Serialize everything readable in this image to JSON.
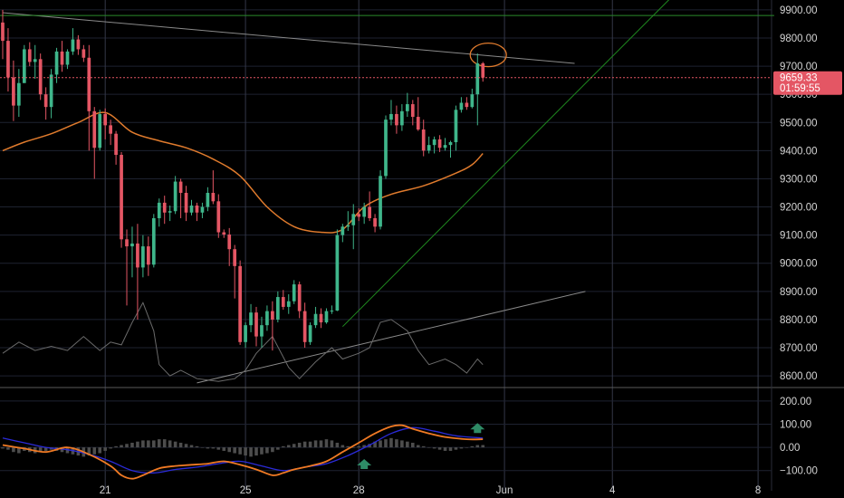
{
  "colors": {
    "background": "#000000",
    "grid": "#1e2230",
    "vgrid": "#343848",
    "up": "#3fb68b",
    "down": "#e45664",
    "ma": "#e07b2d",
    "trendline": "#8a8a8a",
    "channel": "#1f8a1f",
    "hline": "#2a8a2a",
    "macd": "#f07a24",
    "signal": "#2b2bd8",
    "hist": "#4d4d4d",
    "arrow": "#2e8b66",
    "price_tag": "#e45664",
    "circle": "#e07b2d"
  },
  "price_axis": {
    "ticks": [
      "9900.00",
      "9800.00",
      "9700.00",
      "9600.00",
      "9500.00",
      "9400.00",
      "9300.00",
      "9200.00",
      "9100.00",
      "9000.00",
      "8900.00",
      "8800.00",
      "8700.00",
      "8600.00"
    ]
  },
  "price_tag": {
    "price": "9659.33",
    "countdown": "01:59:55"
  },
  "macd_axis": {
    "ticks": [
      "200.00",
      "100.00",
      "0.00",
      "−100.00"
    ]
  },
  "date_axis": {
    "labels": [
      "21",
      "25",
      "28",
      "Jun",
      "4",
      "8"
    ]
  },
  "chart_data": {
    "type": "candlestick",
    "y_range": [
      8565,
      9935
    ],
    "macd_range": [
      -140,
      250
    ],
    "x_index_range": [
      -0.5,
      142.5
    ],
    "last_price": 9659.33,
    "date_ticks": [
      {
        "label": "21",
        "index": 19
      },
      {
        "label": "25",
        "index": 45
      },
      {
        "label": "28",
        "index": 66
      },
      {
        "label": "Jun",
        "index": 93
      },
      {
        "label": "4",
        "index": 113
      },
      {
        "label": "8",
        "index": 140
      }
    ],
    "candles": [
      [
        9855,
        9900,
        9725,
        9790
      ],
      [
        9790,
        9835,
        9610,
        9660
      ],
      [
        9660,
        9720,
        9505,
        9560
      ],
      [
        9560,
        9690,
        9520,
        9640
      ],
      [
        9640,
        9775,
        9640,
        9760
      ],
      [
        9760,
        9785,
        9700,
        9715
      ],
      [
        9715,
        9775,
        9655,
        9725
      ],
      [
        9725,
        9745,
        9580,
        9600
      ],
      [
        9600,
        9625,
        9510,
        9555
      ],
      [
        9555,
        9690,
        9515,
        9670
      ],
      [
        9670,
        9765,
        9640,
        9752
      ],
      [
        9752,
        9790,
        9680,
        9705
      ],
      [
        9705,
        9760,
        9690,
        9752
      ],
      [
        9752,
        9835,
        9740,
        9795
      ],
      [
        9795,
        9810,
        9740,
        9760
      ],
      [
        9760,
        9775,
        9715,
        9730
      ],
      [
        9730,
        9775,
        9400,
        9540
      ],
      [
        9540,
        9555,
        9300,
        9410
      ],
      [
        9410,
        9545,
        9400,
        9530
      ],
      [
        9530,
        9550,
        9440,
        9490
      ],
      [
        9490,
        9510,
        9420,
        9460
      ],
      [
        9460,
        9470,
        9350,
        9385
      ],
      [
        9385,
        9395,
        9055,
        9085
      ],
      [
        9085,
        9120,
        8850,
        9060
      ],
      [
        9060,
        9130,
        8950,
        9070
      ],
      [
        9070,
        9140,
        8800,
        8985
      ],
      [
        8985,
        9100,
        8950,
        9060
      ],
      [
        9060,
        9095,
        8955,
        8995
      ],
      [
        8995,
        9175,
        8985,
        9160
      ],
      [
        9160,
        9230,
        9130,
        9215
      ],
      [
        9215,
        9240,
        9140,
        9180
      ],
      [
        9180,
        9205,
        9150,
        9185
      ],
      [
        9185,
        9310,
        9175,
        9290
      ],
      [
        9290,
        9300,
        9160,
        9250
      ],
      [
        9250,
        9275,
        9150,
        9180
      ],
      [
        9180,
        9225,
        9170,
        9205
      ],
      [
        9205,
        9215,
        9150,
        9180
      ],
      [
        9180,
        9215,
        9160,
        9200
      ],
      [
        9200,
        9270,
        9185,
        9250
      ],
      [
        9250,
        9330,
        9210,
        9220
      ],
      [
        9220,
        9245,
        9090,
        9110
      ],
      [
        9110,
        9120,
        9090,
        9102
      ],
      [
        9102,
        9125,
        8990,
        9050
      ],
      [
        9050,
        9065,
        8875,
        8990
      ],
      [
        8990,
        9010,
        8710,
        8720
      ],
      [
        8720,
        8790,
        8700,
        8780
      ],
      [
        8780,
        8855,
        8755,
        8825
      ],
      [
        8825,
        8845,
        8705,
        8740
      ],
      [
        8740,
        8810,
        8700,
        8780
      ],
      [
        8780,
        8850,
        8760,
        8830
      ],
      [
        8830,
        8865,
        8690,
        8800
      ],
      [
        8800,
        8900,
        8790,
        8880
      ],
      [
        8880,
        8905,
        8835,
        8845
      ],
      [
        8845,
        8890,
        8820,
        8865
      ],
      [
        8865,
        8940,
        8855,
        8925
      ],
      [
        8925,
        8935,
        8805,
        8830
      ],
      [
        8830,
        8860,
        8700,
        8720
      ],
      [
        8720,
        8790,
        8710,
        8780
      ],
      [
        8780,
        8845,
        8770,
        8820
      ],
      [
        8820,
        8840,
        8770,
        8790
      ],
      [
        8790,
        8840,
        8785,
        8830
      ],
      [
        8830,
        8850,
        8820,
        8832
      ],
      [
        8832,
        9120,
        8830,
        9100
      ],
      [
        9100,
        9140,
        9075,
        9130
      ],
      [
        9130,
        9185,
        9115,
        9135
      ],
      [
        9135,
        9210,
        9050,
        9175
      ],
      [
        9175,
        9195,
        9150,
        9165
      ],
      [
        9165,
        9215,
        9140,
        9200
      ],
      [
        9200,
        9255,
        9150,
        9160
      ],
      [
        9160,
        9175,
        9110,
        9130
      ],
      [
        9130,
        9330,
        9120,
        9310
      ],
      [
        9310,
        9525,
        9300,
        9510
      ],
      [
        9510,
        9580,
        9490,
        9530
      ],
      [
        9530,
        9560,
        9460,
        9490
      ],
      [
        9490,
        9565,
        9470,
        9540
      ],
      [
        9540,
        9605,
        9520,
        9565
      ],
      [
        9565,
        9580,
        9490,
        9520
      ],
      [
        9520,
        9590,
        9470,
        9475
      ],
      [
        9475,
        9510,
        9380,
        9400
      ],
      [
        9400,
        9450,
        9390,
        9420
      ],
      [
        9420,
        9450,
        9390,
        9440
      ],
      [
        9440,
        9455,
        9395,
        9410
      ],
      [
        9410,
        9445,
        9400,
        9420
      ],
      [
        9420,
        9435,
        9375,
        9430
      ],
      [
        9430,
        9560,
        9400,
        9545
      ],
      [
        9545,
        9590,
        9535,
        9570
      ],
      [
        9570,
        9590,
        9545,
        9555
      ],
      [
        9555,
        9620,
        9550,
        9600
      ],
      [
        9600,
        9745,
        9490,
        9710
      ],
      [
        9710,
        9715,
        9645,
        9659.33
      ]
    ],
    "ma": {
      "indices": [
        0,
        4,
        9,
        14,
        19,
        24,
        29,
        34,
        39,
        44,
        49,
        54,
        59,
        63,
        67,
        72,
        78,
        84,
        87,
        89
      ],
      "values": [
        9400,
        9430,
        9460,
        9500,
        9535,
        9465,
        9435,
        9410,
        9370,
        9310,
        9200,
        9130,
        9110,
        9120,
        9200,
        9245,
        9275,
        9320,
        9350,
        9390
      ]
    },
    "oscillator": {
      "indices": [
        0,
        3,
        6,
        9,
        12,
        15,
        18,
        20,
        22,
        24,
        26,
        28,
        29,
        31,
        33,
        36,
        40,
        43,
        45,
        47,
        50,
        53,
        55,
        58,
        61,
        63,
        66,
        68,
        70,
        72,
        75,
        77,
        79,
        82,
        84,
        86,
        88,
        89
      ],
      "values": [
        8680,
        8720,
        8690,
        8705,
        8690,
        8740,
        8690,
        8720,
        8710,
        8790,
        8860,
        8760,
        8640,
        8600,
        8620,
        8590,
        8580,
        8590,
        8620,
        8680,
        8740,
        8630,
        8590,
        8650,
        8700,
        8660,
        8680,
        8700,
        8790,
        8800,
        8760,
        8690,
        8640,
        8660,
        8640,
        8610,
        8660,
        8640
      ]
    },
    "trendlines": [
      {
        "name": "upper",
        "from": [
          0,
          9890
        ],
        "to": [
          106,
          9710
        ],
        "color": "trendline"
      },
      {
        "name": "lower",
        "from": [
          36,
          8575
        ],
        "to": [
          108,
          8900
        ],
        "color": "trendline"
      },
      {
        "name": "channel",
        "from": [
          63,
          8775
        ],
        "to": [
          125,
          9965
        ],
        "color": "channel"
      },
      {
        "name": "horizontal",
        "from": [
          -1,
          9880
        ],
        "to": [
          143,
          9880
        ],
        "color": "hline"
      }
    ],
    "ellipse_center": [
      90,
      9740
    ],
    "macd": {
      "indices": [
        0,
        4,
        8,
        12,
        16,
        20,
        22,
        24,
        26,
        29,
        32,
        35,
        38,
        41,
        44,
        47,
        50,
        52,
        54,
        57,
        60,
        63,
        66,
        69,
        72,
        74,
        76,
        79,
        82,
        86,
        89
      ],
      "values": [
        10,
        -5,
        -20,
        0,
        -30,
        -80,
        -120,
        -135,
        -120,
        -90,
        -80,
        -75,
        -70,
        -60,
        -75,
        -95,
        -120,
        -110,
        -95,
        -80,
        -60,
        -20,
        20,
        60,
        90,
        95,
        80,
        60,
        45,
        35,
        35
      ]
    },
    "signal": {
      "indices": [
        0,
        4,
        8,
        12,
        16,
        20,
        24,
        28,
        32,
        36,
        40,
        44,
        48,
        52,
        56,
        60,
        64,
        68,
        72,
        76,
        80,
        84,
        89
      ],
      "values": [
        40,
        20,
        0,
        -10,
        -30,
        -60,
        -100,
        -110,
        -95,
        -85,
        -70,
        -60,
        -80,
        -100,
        -85,
        -70,
        -35,
        10,
        60,
        85,
        70,
        50,
        40
      ]
    },
    "histogram": [
      -5,
      -10,
      -20,
      -25,
      -15,
      -20,
      -25,
      -20,
      -15,
      -10,
      -15,
      -20,
      -25,
      -30,
      -35,
      -40,
      -35,
      -30,
      -25,
      -15,
      -5,
      5,
      10,
      15,
      20,
      25,
      30,
      30,
      30,
      35,
      35,
      30,
      25,
      20,
      15,
      10,
      5,
      0,
      -5,
      -5,
      -10,
      -15,
      -20,
      -25,
      -30,
      -35,
      -40,
      -35,
      -30,
      -25,
      -20,
      -10,
      5,
      10,
      15,
      20,
      25,
      25,
      30,
      30,
      35,
      30,
      20,
      10,
      5,
      0,
      5,
      10,
      15,
      25,
      30,
      35,
      40,
      35,
      30,
      25,
      20,
      10,
      5,
      0,
      -5,
      -10,
      -15,
      -15,
      -10,
      -5,
      0,
      5,
      10,
      10
    ],
    "arrows": [
      {
        "index": 67,
        "value": -70
      },
      {
        "index": 88,
        "value": 85
      }
    ]
  }
}
